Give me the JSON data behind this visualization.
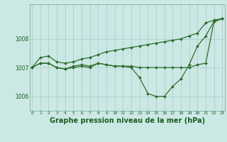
{
  "background_color": "#cce8e4",
  "plot_bg_color": "#cce8e4",
  "grid_color": "#aacfcc",
  "line_color": "#2d6e2d",
  "title": "Graphe pression niveau de la mer (hPa)",
  "hours": [
    0,
    1,
    2,
    3,
    4,
    5,
    6,
    7,
    8,
    9,
    10,
    11,
    12,
    13,
    14,
    15,
    16,
    17,
    18,
    19,
    20,
    21,
    22,
    23
  ],
  "ylim": [
    1005.5,
    1009.2
  ],
  "yticks": [
    1006,
    1007,
    1008
  ],
  "line_upper": [
    1007.0,
    1007.35,
    1007.4,
    1007.2,
    1007.15,
    1007.2,
    1007.3,
    1007.35,
    1007.45,
    1007.55,
    1007.6,
    1007.65,
    1007.7,
    1007.75,
    1007.8,
    1007.85,
    1007.9,
    1007.95,
    1008.0,
    1008.1,
    1008.2,
    1008.55,
    1008.65,
    1008.7
  ],
  "line_flat": [
    1007.0,
    1007.15,
    1007.15,
    1007.0,
    1006.95,
    1007.05,
    1007.1,
    1007.05,
    1007.15,
    1007.1,
    1007.05,
    1007.05,
    1007.05,
    1007.0,
    1007.0,
    1007.0,
    1007.0,
    1007.0,
    1007.0,
    1007.0,
    1007.1,
    1007.15,
    1008.6,
    1008.7
  ],
  "line_dip": [
    1007.0,
    1007.15,
    1007.15,
    1007.0,
    1006.95,
    1007.0,
    1007.05,
    1007.0,
    1007.15,
    1007.1,
    1007.05,
    1007.05,
    1007.0,
    1006.65,
    1006.1,
    1006.0,
    1006.0,
    1006.35,
    1006.6,
    1007.1,
    1007.75,
    1008.1,
    1008.6,
    1008.7
  ],
  "title_fontsize": 7,
  "marker_size": 2.0,
  "linewidth": 0.9
}
